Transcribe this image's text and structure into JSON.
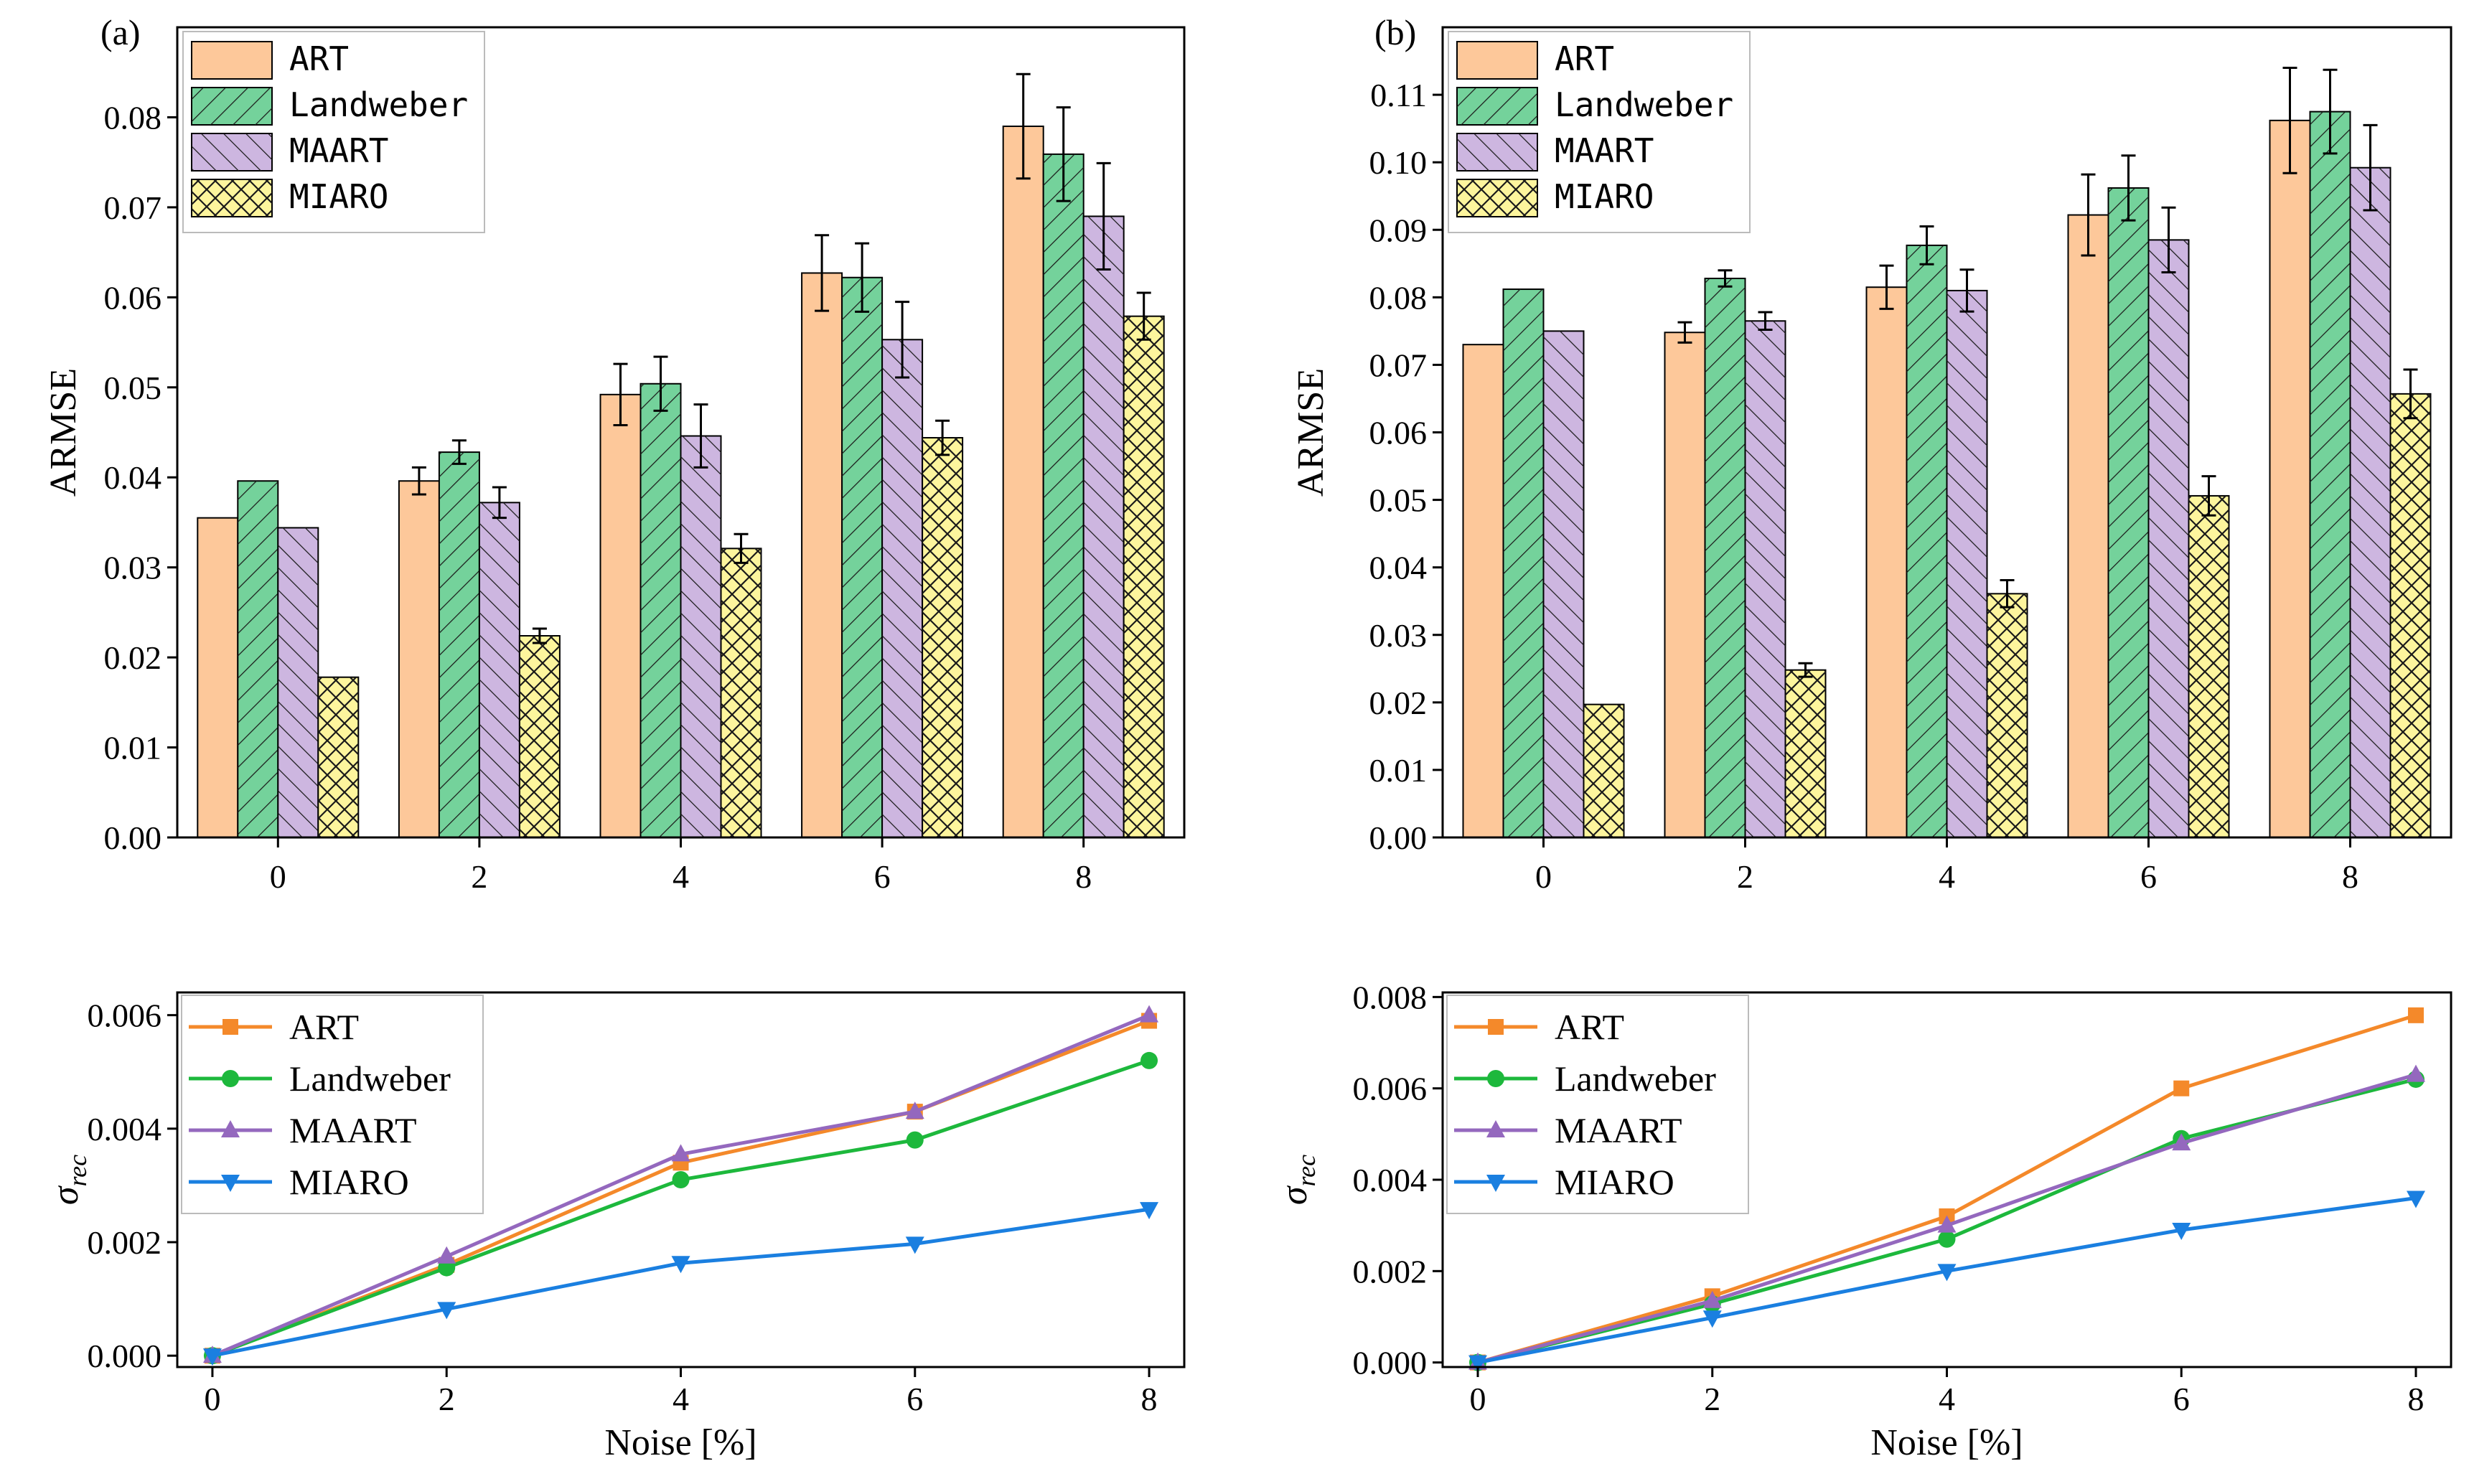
{
  "colors": {
    "ART": "#fdc89a",
    "Landweber": "#74d29b",
    "MAART": "#cdb6e0",
    "MIARO": "#fdf59d",
    "ART_line": "#f4892a",
    "Landweber_line": "#1db83c",
    "MAART_line": "#9468be",
    "MIARO_line": "#1a7fe0"
  },
  "chart_data": [
    {
      "panel": "(a)",
      "type": "bar",
      "title": "",
      "xlabel": "",
      "ylabel": "ARMSE",
      "categories": [
        "0",
        "2",
        "4",
        "6",
        "8"
      ],
      "ylim": [
        0,
        0.09
      ],
      "yticks": [
        "0.00",
        "0.01",
        "0.02",
        "0.03",
        "0.04",
        "0.05",
        "0.06",
        "0.07",
        "0.08"
      ],
      "legend_position": "top-left",
      "series": [
        {
          "name": "ART",
          "values": [
            0.0355,
            0.0396,
            0.0492,
            0.0627,
            0.079
          ],
          "errors": [
            0,
            0.0015,
            0.0034,
            0.0042,
            0.0058
          ]
        },
        {
          "name": "Landweber",
          "values": [
            0.0396,
            0.0428,
            0.0504,
            0.0622,
            0.0759
          ],
          "errors": [
            0,
            0.0013,
            0.003,
            0.0038,
            0.0052
          ]
        },
        {
          "name": "MAART",
          "values": [
            0.0344,
            0.0372,
            0.0446,
            0.0553,
            0.069
          ],
          "errors": [
            0,
            0.0017,
            0.0035,
            0.0042,
            0.0059
          ]
        },
        {
          "name": "MIARO",
          "values": [
            0.0178,
            0.0224,
            0.0321,
            0.0444,
            0.0579
          ],
          "errors": [
            0,
            0.0008,
            0.0016,
            0.0019,
            0.0026
          ]
        }
      ]
    },
    {
      "panel": "(b)",
      "type": "bar",
      "title": "",
      "xlabel": "",
      "ylabel": "ARMSE",
      "categories": [
        "0",
        "2",
        "4",
        "6",
        "8"
      ],
      "ylim": [
        0,
        0.12
      ],
      "yticks": [
        "0.00",
        "0.01",
        "0.02",
        "0.03",
        "0.04",
        "0.05",
        "0.06",
        "0.07",
        "0.08",
        "0.09",
        "0.10",
        "0.11"
      ],
      "legend_position": "top-left",
      "series": [
        {
          "name": "ART",
          "values": [
            0.073,
            0.0748,
            0.0815,
            0.0922,
            0.1062
          ],
          "errors": [
            0,
            0.0015,
            0.0032,
            0.006,
            0.0078
          ]
        },
        {
          "name": "Landweber",
          "values": [
            0.0812,
            0.0828,
            0.0877,
            0.0962,
            0.1075
          ],
          "errors": [
            0,
            0.0012,
            0.0028,
            0.0048,
            0.0062
          ]
        },
        {
          "name": "MAART",
          "values": [
            0.075,
            0.0765,
            0.081,
            0.0885,
            0.0992
          ],
          "errors": [
            0,
            0.0013,
            0.0031,
            0.0048,
            0.0063
          ]
        },
        {
          "name": "MIARO",
          "values": [
            0.0197,
            0.0248,
            0.0361,
            0.0506,
            0.0657
          ],
          "errors": [
            0,
            0.001,
            0.002,
            0.0029,
            0.0036
          ]
        }
      ]
    },
    {
      "panel": "(a-bottom)",
      "type": "line",
      "title": "",
      "xlabel": "Noise [%]",
      "ylabel": "σ",
      "ylabel_sub": "rec",
      "x": [
        0,
        2,
        4,
        6,
        8
      ],
      "xticks": [
        "0",
        "2",
        "4",
        "6",
        "8"
      ],
      "ylim": [
        -0.0002,
        0.0064
      ],
      "yticks": [
        "0.000",
        "0.002",
        "0.004",
        "0.006"
      ],
      "legend_position": "top-left",
      "series": [
        {
          "name": "ART",
          "values": [
            0,
            0.0016,
            0.0034,
            0.0043,
            0.0059
          ],
          "marker": "square"
        },
        {
          "name": "Landweber",
          "values": [
            0,
            0.00155,
            0.0031,
            0.0038,
            0.0052
          ],
          "marker": "circle"
        },
        {
          "name": "MAART",
          "values": [
            0,
            0.00175,
            0.00355,
            0.0043,
            0.006
          ],
          "marker": "triangle-up"
        },
        {
          "name": "MIARO",
          "values": [
            0,
            0.00082,
            0.00163,
            0.00197,
            0.00258
          ],
          "marker": "triangle-down"
        }
      ]
    },
    {
      "panel": "(b-bottom)",
      "type": "line",
      "title": "",
      "xlabel": "Noise [%]",
      "ylabel": "σ",
      "ylabel_sub": "rec",
      "x": [
        0,
        2,
        4,
        6,
        8
      ],
      "xticks": [
        "0",
        "2",
        "4",
        "6",
        "8"
      ],
      "ylim": [
        -0.0001,
        0.0081
      ],
      "yticks": [
        "0.000",
        "0.002",
        "0.004",
        "0.006",
        "0.008"
      ],
      "legend_position": "top-left",
      "series": [
        {
          "name": "ART",
          "values": [
            0,
            0.00145,
            0.0032,
            0.006,
            0.0076
          ],
          "marker": "square"
        },
        {
          "name": "Landweber",
          "values": [
            0,
            0.00128,
            0.0027,
            0.0049,
            0.0062
          ],
          "marker": "circle"
        },
        {
          "name": "MAART",
          "values": [
            0,
            0.00135,
            0.003,
            0.0048,
            0.0063
          ],
          "marker": "triangle-up"
        },
        {
          "name": "MIARO",
          "values": [
            0,
            0.00098,
            0.002,
            0.0029,
            0.0036
          ],
          "marker": "triangle-down"
        }
      ]
    }
  ]
}
